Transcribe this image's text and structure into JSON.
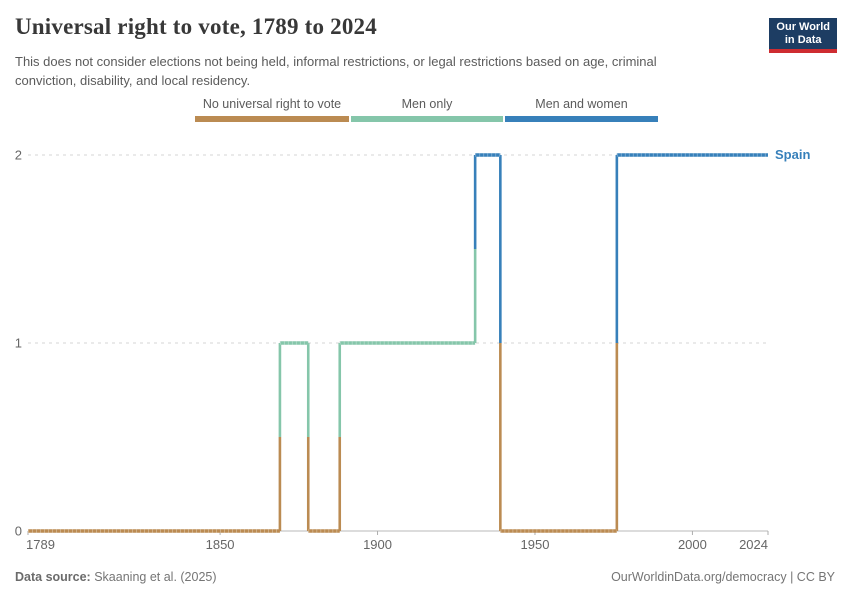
{
  "header": {
    "title": "Universal right to vote, 1789 to 2024",
    "subtitle": "This does not consider elections not being held, informal restrictions, or legal restrictions based on age, criminal conviction, disability, and local residency.",
    "logo_line1": "Our World",
    "logo_line2": "in Data"
  },
  "footer": {
    "source_label": "Data source:",
    "source_value": "Skaaning et al. (2025)",
    "right": "OurWorldinData.org/democracy | CC BY"
  },
  "colors": {
    "no_universal": "#BB8B52",
    "men_only": "#85C6AA",
    "men_and_women": "#3780BA",
    "logo_navy": "#1d3d63",
    "logo_red": "#CE2C31"
  },
  "chart_data": {
    "type": "line",
    "step": true,
    "title": "Universal right to vote, 1789 to 2024",
    "series_name": "Spain",
    "xlabel": "",
    "ylabel": "",
    "xlim": [
      1789,
      2024
    ],
    "ylim": [
      0,
      2
    ],
    "x_ticks": [
      1789,
      1850,
      1900,
      1950,
      2000,
      2024
    ],
    "y_ticks": [
      0,
      1,
      2
    ],
    "grid": true,
    "legend_position": "top",
    "categories": [
      {
        "value": 0,
        "label": "No universal right to vote",
        "color": "#BB8B52"
      },
      {
        "value": 1,
        "label": "Men only",
        "color": "#85C6AA"
      },
      {
        "value": 2,
        "label": "Men and women",
        "color": "#3780BA"
      }
    ],
    "segments": [
      {
        "from": 1789,
        "to": 1869,
        "value": 0
      },
      {
        "from": 1869,
        "to": 1878,
        "value": 1
      },
      {
        "from": 1878,
        "to": 1888,
        "value": 0
      },
      {
        "from": 1888,
        "to": 1931,
        "value": 1
      },
      {
        "from": 1931,
        "to": 1939,
        "value": 2
      },
      {
        "from": 1939,
        "to": 1976,
        "value": 0
      },
      {
        "from": 1976,
        "to": 2024,
        "value": 2
      }
    ]
  }
}
